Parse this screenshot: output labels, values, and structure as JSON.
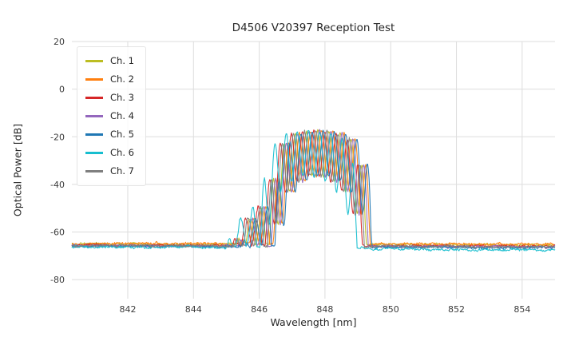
{
  "title": "D4506 V20397 Reception Test",
  "figure": {
    "background": "#ffffff",
    "grid_color": "#dddddd",
    "tick_text_color": "#3b3b3b",
    "text_color": "#262626"
  },
  "chart_data": {
    "type": "line",
    "title": "D4506 V20397 Reception Test",
    "xlabel": "Wavelength [nm]",
    "ylabel": "Optical Power [dB]",
    "xlim": [
      840.3,
      855.0
    ],
    "ylim": [
      -88,
      20
    ],
    "xticks": [
      842,
      844,
      846,
      848,
      850,
      852,
      854
    ],
    "yticks": [
      20,
      0,
      -20,
      -40,
      -60,
      -80
    ],
    "grid": true,
    "legend_position": "upper-left",
    "sample_step_nm": 0.02,
    "description": "Seven overlaid optical spectra: flat noise floor near -66 dB across 840-855 nm, small shoulder bumps rising from 845.2 nm, a comb-like cluster of peaks between 846.5 and 849.2 nm topping out near -17 dB, then a sharp fall back to the noise floor at ~849.3 nm.",
    "series": [
      {
        "name": "Ch. 1",
        "color": "#bcbd22",
        "center": 847.78,
        "floor": -65.2,
        "floor_slope": -0.03,
        "seed": 11
      },
      {
        "name": "Ch. 2",
        "color": "#ff7f0e",
        "center": 847.9,
        "floor": -65.0,
        "floor_slope": -0.02,
        "seed": 22
      },
      {
        "name": "Ch. 3",
        "color": "#d62728",
        "center": 847.66,
        "floor": -65.8,
        "floor_slope": -0.03,
        "seed": 33
      },
      {
        "name": "Ch. 4",
        "color": "#9467bd",
        "center": 847.84,
        "floor": -66.0,
        "floor_slope": -0.04,
        "seed": 44
      },
      {
        "name": "Ch. 5",
        "color": "#1f77b4",
        "center": 847.95,
        "floor": -66.3,
        "floor_slope": -0.05,
        "seed": 55
      },
      {
        "name": "Ch. 6",
        "color": "#17becf",
        "center": 847.5,
        "floor": -66.9,
        "floor_slope": -0.11,
        "seed": 66
      },
      {
        "name": "Ch. 7",
        "color": "#7f7f7f",
        "center": 847.72,
        "floor": -66.0,
        "floor_slope": -0.04,
        "seed": 77
      }
    ],
    "peak_shape": {
      "comb_spacing_nm": 0.34,
      "comb_depth_mid_db": 19,
      "comb_depth_edge_db": 30,
      "shoulder_ripple_db": 8,
      "envelope_dx_db": [
        [
          -2.9,
          -75.0
        ],
        [
          -2.62,
          -66.0
        ],
        [
          -2.5,
          -60.5
        ],
        [
          -2.35,
          -64.0
        ],
        [
          -2.1,
          -53.0
        ],
        [
          -1.9,
          -58.5
        ],
        [
          -1.62,
          -46.0
        ],
        [
          -1.5,
          -50.0
        ],
        [
          -1.32,
          -35.0
        ],
        [
          -1.12,
          -24.5
        ],
        [
          -0.85,
          -19.2
        ],
        [
          -0.45,
          -17.8
        ],
        [
          0.0,
          -17.2
        ],
        [
          0.45,
          -17.9
        ],
        [
          0.85,
          -19.2
        ],
        [
          1.1,
          -21.5
        ],
        [
          1.3,
          -27.0
        ],
        [
          1.42,
          -38.0
        ],
        [
          1.52,
          -55.0
        ],
        [
          1.62,
          -70.0
        ]
      ]
    }
  }
}
